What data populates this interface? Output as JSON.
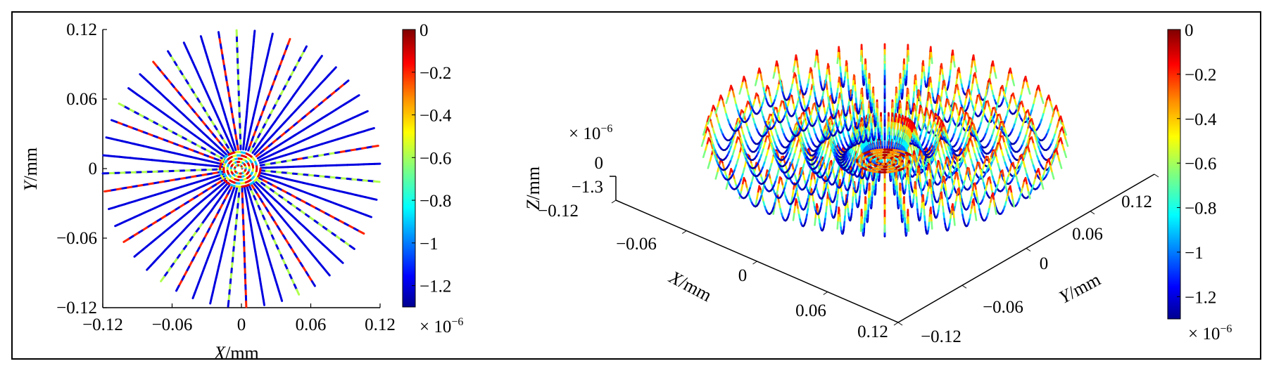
{
  "chart_data": [
    {
      "type": "scatter",
      "subtype": "radial-line-scan (top view)",
      "xlabel": "X/mm",
      "ylabel": "Y/mm",
      "xlim": [
        -0.12,
        0.12
      ],
      "ylim": [
        -0.12,
        0.12
      ],
      "xticks": [
        "−0.12",
        "−0.06",
        "0",
        "0.06",
        "0.12"
      ],
      "yticks": [
        "0.12",
        "0.06",
        "0",
        "−0.06",
        "−0.12"
      ],
      "radial_lines": 48,
      "grid": false,
      "colorbar": {
        "ticks": [
          "0",
          "−0.2",
          "−0.4",
          "−0.6",
          "−0.8",
          "−1",
          "−1.2"
        ],
        "exponent": "× 10−6",
        "colormap": "jet",
        "range": [
          -1.3e-06,
          0
        ]
      }
    },
    {
      "type": "scatter",
      "subtype": "3d-surface-line-scan",
      "xlabel": "X/mm",
      "ylabel": "Y/mm",
      "zlabel": "Z/mm",
      "xticks": [
        "−0.06",
        "0",
        "0.06",
        "0.12"
      ],
      "yticks": [
        "−0.12",
        "−0.06",
        "0",
        "0.06",
        "0.12"
      ],
      "zticks": [
        "0",
        "−1.3"
      ],
      "z_exponent": "× 10−6",
      "x_corner_tick": "−0.12",
      "xlim": [
        -0.12,
        0.12
      ],
      "ylim": [
        -0.12,
        0.12
      ],
      "zlim": [
        -1.3e-06,
        0
      ],
      "grid": false,
      "colorbar": {
        "ticks": [
          "0",
          "−0.2",
          "−0.4",
          "−0.6",
          "−0.8",
          "−1",
          "−1.2"
        ],
        "exponent": "× 10−6",
        "colormap": "jet",
        "range": [
          -1.3e-06,
          0
        ]
      }
    }
  ],
  "colors": {
    "jet": [
      "#00008f",
      "#0000ff",
      "#00b0ff",
      "#00ffff",
      "#7fff7f",
      "#ffff00",
      "#ff9000",
      "#ff0000",
      "#800000"
    ]
  }
}
